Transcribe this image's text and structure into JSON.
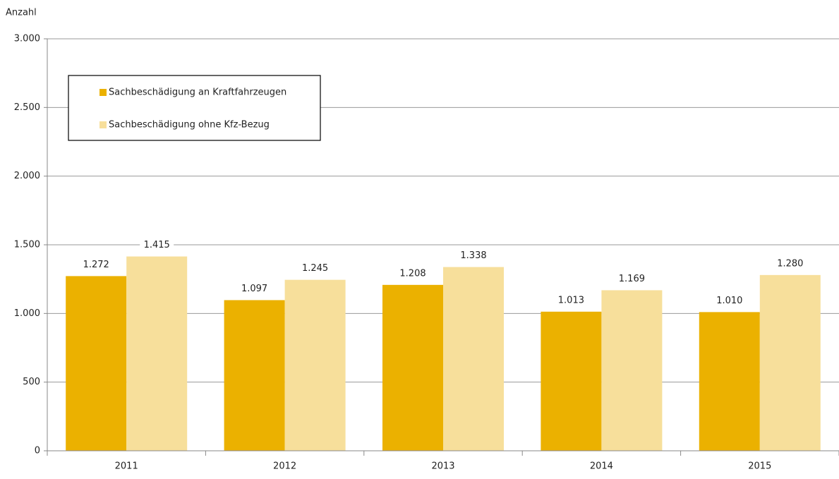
{
  "chart_data": {
    "type": "bar",
    "ylabel": "Anzahl",
    "categories": [
      "2011",
      "2012",
      "2013",
      "2014",
      "2015"
    ],
    "series": [
      {
        "name": "Sachbeschädigung an Kraftfahrzeugen",
        "color": "#ebb100",
        "values": [
          1272,
          1097,
          1208,
          1013,
          1010
        ],
        "value_labels": [
          "1.272",
          "1.097",
          "1.208",
          "1.013",
          "1.010"
        ]
      },
      {
        "name": "Sachbeschädigung ohne Kfz-Bezug",
        "color": "#f7df9b",
        "values": [
          1415,
          1245,
          1338,
          1169,
          1280
        ],
        "value_labels": [
          "1.415",
          "1.245",
          "1.338",
          "1.169",
          "1.280"
        ]
      }
    ],
    "ylim": [
      0,
      3000
    ],
    "yticks": [
      0,
      500,
      {
        "value": 1000,
        "label": "1.000"
      },
      {
        "value": 1500,
        "label": "1.500"
      },
      {
        "value": 2000,
        "label": "2.000"
      },
      {
        "value": 2500,
        "label": "2.500"
      },
      {
        "value": 3000,
        "label": "3.000"
      }
    ],
    "grid": true,
    "legend": "upper left"
  }
}
